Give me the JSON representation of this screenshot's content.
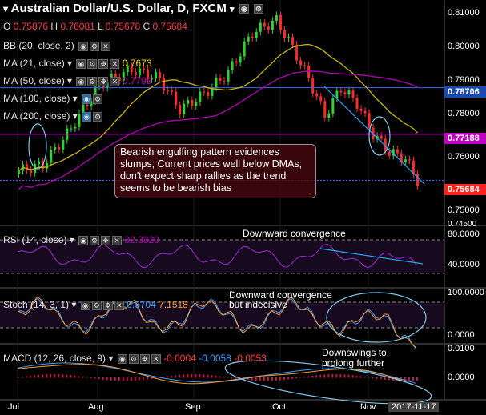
{
  "title": "Australian Dollar/U.S. Dollar, D, FXCM",
  "ohlc": {
    "o_label": "O",
    "o": "0.75876",
    "h_label": "H",
    "h": "0.76081",
    "l_label": "L",
    "l": "0.75678",
    "c_label": "C",
    "c": "0.75684"
  },
  "indicators": {
    "bb": {
      "label": "BB (20, close, 2)"
    },
    "ma21": {
      "label": "MA (21, close)",
      "value": "0.7673"
    },
    "ma50": {
      "label": "MA (50, close)",
      "value": "0.7799"
    },
    "ma100": {
      "label": "MA (100, close)"
    },
    "ma200": {
      "label": "MA (200, close)"
    }
  },
  "annotation_main": "Bearish engulfing pattern evidences slumps, Current prices well below DMAs, don't expect sharp rallies as the trend seems to be bearish bias",
  "price_axis": [
    "0.81000",
    "0.80000",
    "0.79000",
    "0.78000",
    "0.76000",
    "0.75000",
    "0.74500"
  ],
  "price_markers": {
    "blue": "0.78706",
    "magenta": "0.77188",
    "red": "0.75684"
  },
  "rsi": {
    "label": "RSI (14, close)",
    "value": "32.3820",
    "axis": [
      "80.0000",
      "40.0000"
    ],
    "annotation": "Downward convergence"
  },
  "stoch": {
    "label": "Stoch (14, 3, 1)",
    "k": "0.3704",
    "d": "7.1518",
    "axis": [
      "100.0000",
      "0.0000"
    ],
    "annotation_line1": "Downward convergence",
    "annotation_line2": "but indecisive"
  },
  "macd": {
    "label": "MACD (12, 26, close, 9)",
    "hist": "-0.0004",
    "macd": "-0.0058",
    "signal": "-0.0053",
    "axis": [
      "0.0100",
      "0.0000"
    ],
    "annotation_line1": "Downswings to",
    "annotation_line2": "prolong further"
  },
  "x_axis": [
    "Jul",
    "Aug",
    "Sep",
    "Oct",
    "Nov",
    "2017-11-17"
  ],
  "colors": {
    "up": "#2fd32f",
    "down": "#ff2a2a",
    "ma21": "#c8b400",
    "ma50": "#b400b4",
    "bb": "#2a6bff",
    "rsi": "#9b2bd6",
    "stoch_k": "#3aa0ff",
    "stoch_d": "#ff9a2a",
    "macd": "#3aa0ff",
    "signal": "#ff9a2a"
  }
}
